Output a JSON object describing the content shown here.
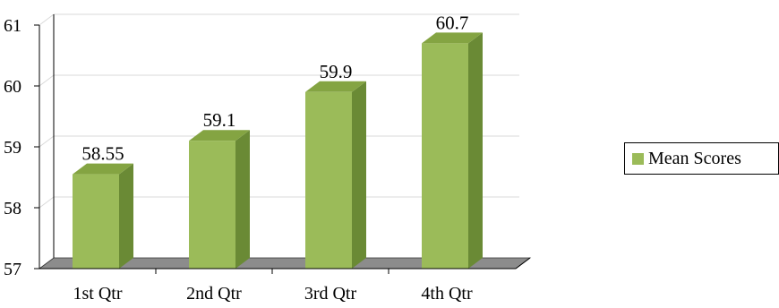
{
  "chart_data": {
    "type": "bar",
    "title": "",
    "xlabel": "",
    "ylabel": "",
    "categories": [
      "1st Qtr",
      "2nd Qtr",
      "3rd Qtr",
      "4th Qtr"
    ],
    "series": [
      {
        "name": "Mean Scores",
        "values": [
          58.55,
          59.1,
          59.9,
          60.7
        ],
        "labels": [
          "58.55",
          "59.1",
          "59.9",
          "60.7"
        ]
      }
    ],
    "ylim": [
      57,
      61
    ],
    "yticks": [
      "57",
      "58",
      "59",
      "60",
      "61"
    ],
    "grid": true,
    "legend": "right",
    "colors": {
      "bar_front": "#9bbb59",
      "bar_side": "#6a8a35",
      "bar_top": "#84a442",
      "floor": "#8c8c8c",
      "grid": "#d9d9d9"
    }
  }
}
